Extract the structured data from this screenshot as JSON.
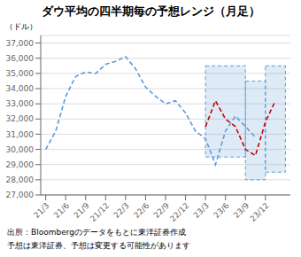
{
  "chart_data": {
    "type": "line",
    "title": "ダウ平均の四半期毎の予想レンジ（月足）",
    "ylabel": "（ドル）",
    "annotations": [
      "出所：Bloombergのデータをもとに東洋証券作成",
      "予想は東洋証券、予想は変更する可能性があります"
    ],
    "xlim": [
      -0.5,
      24.5
    ],
    "xticks": [
      {
        "value": 0,
        "label": "21/3"
      },
      {
        "value": 2,
        "label": "21/6"
      },
      {
        "value": 4,
        "label": "21/9"
      },
      {
        "value": 6,
        "label": "21/12"
      },
      {
        "value": 8,
        "label": "22/3"
      },
      {
        "value": 10,
        "label": "22/6"
      },
      {
        "value": 12,
        "label": "22/9"
      },
      {
        "value": 14,
        "label": "22/12"
      },
      {
        "value": 16,
        "label": "23/3"
      },
      {
        "value": 18,
        "label": "23/6"
      },
      {
        "value": 20,
        "label": "23/9"
      },
      {
        "value": 22,
        "label": "23/12"
      }
    ],
    "ylim": [
      27000,
      37500
    ],
    "yticks": [
      {
        "value": 27000,
        "label": "27,000"
      },
      {
        "value": 28000,
        "label": "28,000"
      },
      {
        "value": 29000,
        "label": "29,000"
      },
      {
        "value": 30000,
        "label": "30,000"
      },
      {
        "value": 31000,
        "label": "31,000"
      },
      {
        "value": 32000,
        "label": "32,000"
      },
      {
        "value": 33000,
        "label": "33,000"
      },
      {
        "value": 34000,
        "label": "34,000"
      },
      {
        "value": 35000,
        "label": "35,000"
      },
      {
        "value": 36000,
        "label": "36,000"
      },
      {
        "value": 37000,
        "label": "37,000"
      }
    ],
    "grid": true,
    "series": [
      {
        "color": "#5b9bd5",
        "line_style": "dashed",
        "x": [
          0,
          1,
          2,
          3,
          4,
          5,
          6,
          7,
          8,
          9,
          10,
          11,
          12,
          13,
          14,
          15,
          16,
          17,
          18,
          19,
          20,
          21
        ],
        "values": [
          30000,
          31200,
          33500,
          34800,
          35100,
          35000,
          35600,
          35800,
          36100,
          35300,
          34100,
          33500,
          33000,
          33200,
          32400,
          31200,
          30700,
          29000,
          31200,
          32200,
          31500,
          30800
        ]
      },
      {
        "color": "#c00000",
        "line_style": "dashed",
        "x": [
          16,
          17,
          18,
          19,
          20,
          21,
          22,
          23
        ],
        "values": [
          31500,
          33200,
          32000,
          31500,
          30000,
          29600,
          31800,
          33200
        ]
      }
    ],
    "boxes": {
      "color": "#5b9bd5",
      "ranges": [
        {
          "x_start": 16,
          "x_end": 20,
          "low": 29500,
          "high": 35500
        },
        {
          "x_start": 20,
          "x_end": 22,
          "low": 28000,
          "high": 34500
        },
        {
          "x_start": 22,
          "x_end": 24,
          "low": 28500,
          "high": 35500
        }
      ]
    }
  }
}
